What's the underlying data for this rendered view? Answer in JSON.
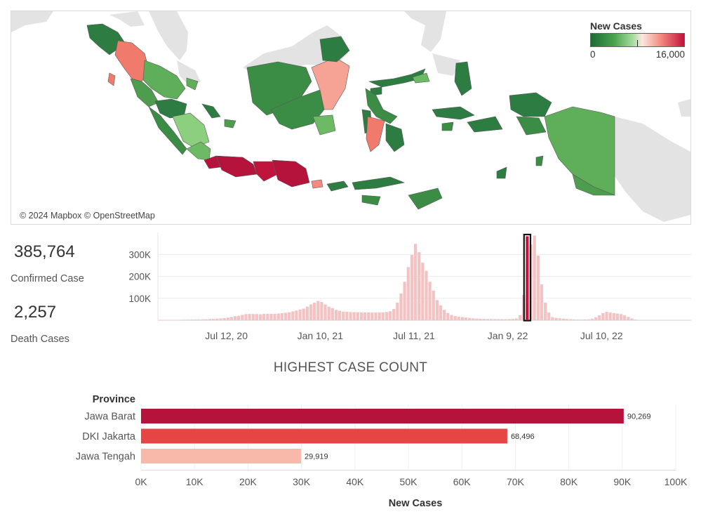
{
  "map": {
    "attribution": "© 2024 Mapbox © OpenStreetMap",
    "legend": {
      "title": "New Cases",
      "min_label": "0",
      "max_label": "16,000",
      "colors": [
        "#1e6b35",
        "#49a34e",
        "#a6dca0",
        "#fbe8e0",
        "#f48a7f",
        "#c0143c"
      ]
    }
  },
  "kpis": {
    "confirmed_value": "385,764",
    "confirmed_label": "Confirmed Case",
    "death_value": "2,257",
    "death_label": "Death Cases"
  },
  "chart_data": [
    {
      "type": "bar",
      "title": "",
      "x_tick_labels": [
        "Jul 12, 20",
        "Jan 10, 21",
        "Jul 11, 21",
        "Jan 9, 22",
        "Jul 10, 22"
      ],
      "y_tick_labels": [
        "100K",
        "200K",
        "300K"
      ],
      "ylim": [
        0,
        400000
      ],
      "x_range": [
        "2020-03-01",
        "2022-12-31"
      ],
      "highlighted_week": "2022-02-13",
      "highlighted_value": 385764,
      "values": [
        400,
        500,
        600,
        800,
        1200,
        1600,
        2000,
        2400,
        2800,
        3000,
        3300,
        3600,
        4000,
        4600,
        5300,
        6200,
        7200,
        8200,
        9800,
        12000,
        14800,
        18200,
        20400,
        24600,
        27800,
        28400,
        28300,
        27900,
        27200,
        28500,
        28800,
        29400,
        29600,
        30500,
        32400,
        34100,
        36500,
        40200,
        44100,
        49000,
        53000,
        62000,
        72000,
        80000,
        88000,
        83000,
        72000,
        62000,
        55000,
        47000,
        43000,
        39500,
        38500,
        37500,
        36800,
        36300,
        35700,
        35600,
        35500,
        35300,
        35400,
        35700,
        36000,
        37500,
        41000,
        51000,
        80000,
        122000,
        175000,
        242000,
        298000,
        348000,
        310000,
        262000,
        225000,
        175000,
        135000,
        92000,
        68000,
        47000,
        33000,
        24000,
        19500,
        16000,
        14500,
        12600,
        10300,
        8700,
        7500,
        6600,
        5900,
        5700,
        5500,
        5200,
        5000,
        4900,
        4800,
        5500,
        6000,
        8000,
        23000,
        115000,
        252000,
        345000,
        385764,
        295000,
        163000,
        80000,
        35000,
        14400,
        10500,
        8800,
        7400,
        6000,
        4800,
        3900,
        3200,
        3000,
        3200,
        4000,
        7000,
        13500,
        22500,
        32000,
        38000,
        35500,
        32800,
        30500,
        28000,
        22000,
        15000,
        8000,
        3000
      ]
    },
    {
      "type": "bar",
      "orientation": "horizontal",
      "title": "HIGHEST CASE COUNT",
      "ylabel": "Province",
      "xlabel": "New Cases",
      "categories": [
        "Jawa Barat",
        "DKI Jakarta",
        "Jawa Tengah"
      ],
      "values": [
        90269,
        68496,
        29919
      ],
      "value_labels": [
        "90,269",
        "68,496",
        "29,919"
      ],
      "colors": [
        "#b5123c",
        "#e64545",
        "#f9b9aa"
      ],
      "x_tick_labels": [
        "0K",
        "10K",
        "20K",
        "30K",
        "40K",
        "50K",
        "60K",
        "70K",
        "80K",
        "90K",
        "100K"
      ],
      "xlim": [
        0,
        100000
      ]
    }
  ]
}
